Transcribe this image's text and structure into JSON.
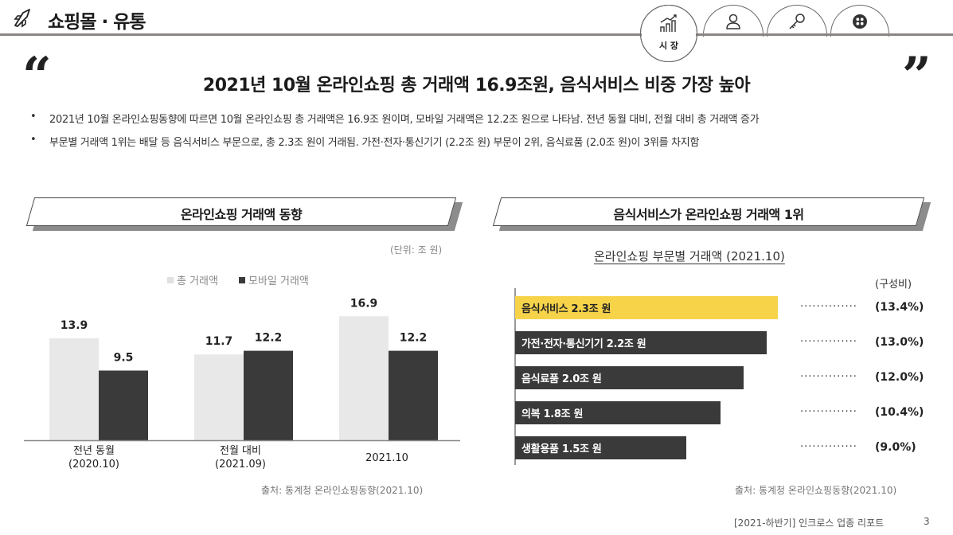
{
  "header": {
    "section_title": "쇼핑몰 · 유통",
    "active_tab_label": "시 장"
  },
  "headline": "2021년 10월 온라인쇼핑 총 거래액 16.9조원, 음식서비스 비중 가장 높아",
  "bullets": [
    "2021년 10월 온라인쇼핑동향에 따르면 10월 온라인쇼핑 총 거래액은 16.9조 원이며, 모바일 거래액은 12.2조 원으로 나타남. 전년 동월 대비, 전월 대비 총 거래액 증가",
    "부문별 거래액 1위는 배달 등 음식서비스 부문으로, 총 2.3조 원이 거래됨. 가전·전자·통신기기 (2.2조 원) 부문이 2위, 음식료품 (2.0조 원)이 3위를 차지함"
  ],
  "left_panel": {
    "banner": "온라인쇼핑 거래액 동향",
    "unit": "(단위:  조 원)",
    "source": "출처: 통계청 온라인쇼핑동향(2021.10)"
  },
  "right_panel": {
    "banner": "음식서비스가 온라인쇼핑 거래액 1위",
    "subtitle": "온라인쇼핑 부문별 거래액 (2021.10)",
    "ratio_header": "(구성비)",
    "leader": "··············",
    "source": "출처: 통계청 온라인쇼핑동향(2021.10)"
  },
  "chart_data": [
    {
      "type": "bar",
      "categories": [
        "전년 동월\n(2020.10)",
        "전월 대비\n(2021.09)",
        "2021.10"
      ],
      "series": [
        {
          "name": "총 거래액",
          "values": [
            13.9,
            11.7,
            16.9
          ],
          "color": "#e8e8e8"
        },
        {
          "name": "모바일 거래액",
          "values": [
            9.5,
            12.2,
            12.2
          ],
          "color": "#3a3a3a"
        }
      ],
      "ylim": [
        0,
        21.8
      ],
      "legend": "top-center",
      "grid": false
    },
    {
      "type": "bar",
      "orientation": "horizontal",
      "title": "온라인쇼핑 부문별 거래액 (2021.10)",
      "categories": [
        "음식서비스",
        "가전·전자·통신기기",
        "음식료품",
        "의복",
        "생활용품"
      ],
      "labels": [
        "음식서비스 2.3조 원",
        "가전·전자·통신기기 2.2조 원",
        "음식료품 2.0조 원",
        "의복 1.8조 원",
        "생활용품 1.5조 원"
      ],
      "values": [
        2.3,
        2.2,
        2.0,
        1.8,
        1.5
      ],
      "shares": [
        "(13.4%)",
        "(13.0%)",
        "(12.0%)",
        "(10.4%)",
        "(9.0%)"
      ],
      "colors": [
        "#f7d34a",
        "#3a3a3a",
        "#3a3a3a",
        "#3a3a3a",
        "#3a3a3a"
      ]
    }
  ],
  "footer": {
    "report": "[2021-하반기] 인크로스 업종 리포트",
    "page": "3"
  },
  "colors": {
    "highlight": "#f7d34a",
    "dark_bar": "#3a3a3a",
    "light_bar": "#e8e8e8"
  }
}
